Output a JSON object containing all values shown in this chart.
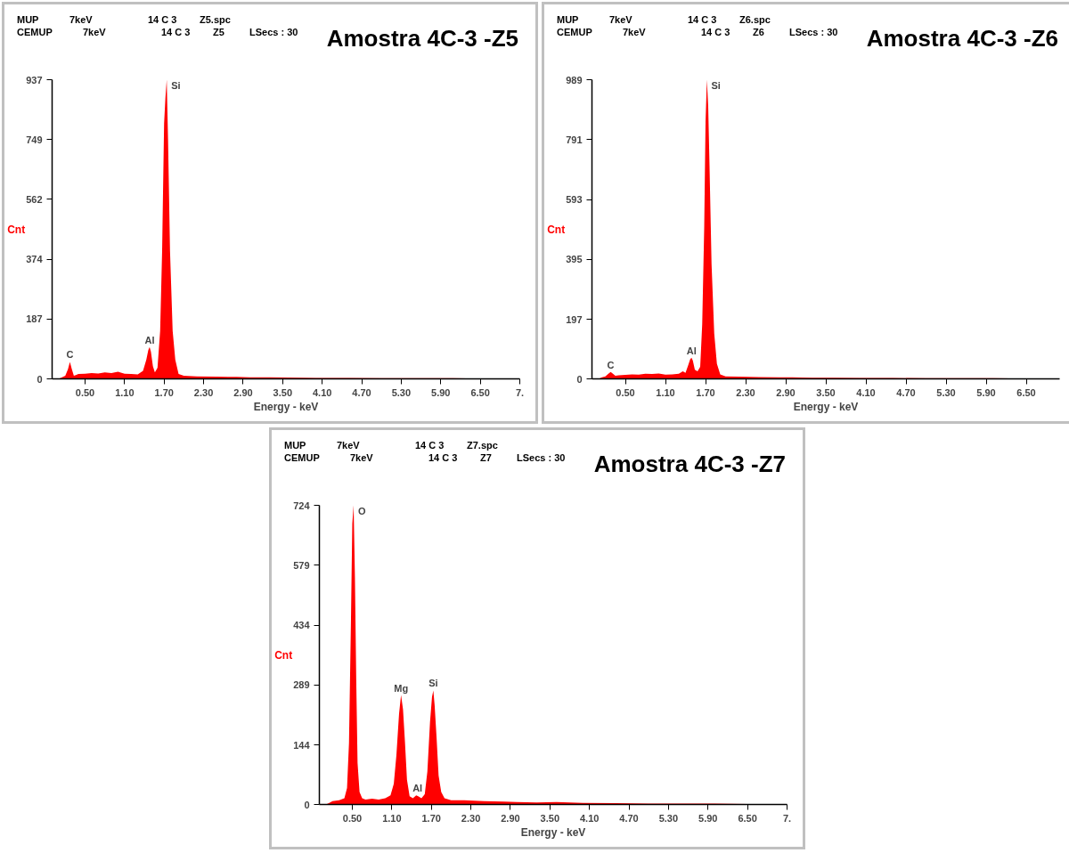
{
  "chart_data": [
    {
      "type": "area",
      "title": "Amostra 4C-3 -Z5",
      "xlabel": "Energy - keV",
      "ylabel": "Cnt",
      "color": "#ff0000",
      "annotations": [
        "MUP",
        "7keV",
        "14 C 3",
        "Z5.spc",
        "CEMUP",
        "7keV",
        "14 C 3",
        "Z5",
        "LSecs : 30",
        {
          "text": "C",
          "x": 0.27,
          "y": 53
        },
        {
          "text": "Al",
          "x": 1.48,
          "y": 100
        },
        {
          "text": "Si",
          "x": 1.74,
          "y": 937
        }
      ],
      "x": [
        0.1,
        0.15,
        0.2,
        0.24,
        0.27,
        0.3,
        0.33,
        0.36,
        0.4,
        0.5,
        0.6,
        0.7,
        0.8,
        0.9,
        1.0,
        1.1,
        1.2,
        1.3,
        1.38,
        1.43,
        1.46,
        1.48,
        1.5,
        1.53,
        1.56,
        1.6,
        1.64,
        1.67,
        1.7,
        1.72,
        1.74,
        1.76,
        1.79,
        1.83,
        1.87,
        1.92,
        2.0,
        2.2,
        2.5,
        2.8,
        3.0,
        3.3,
        3.6,
        4.0,
        4.5,
        5.0,
        5.5,
        6.0,
        6.5,
        7.0
      ],
      "values": [
        0,
        5,
        10,
        30,
        53,
        30,
        10,
        12,
        15,
        16,
        18,
        17,
        20,
        18,
        22,
        16,
        15,
        14,
        25,
        60,
        90,
        100,
        85,
        40,
        20,
        35,
        150,
        400,
        800,
        880,
        937,
        750,
        400,
        150,
        60,
        15,
        10,
        8,
        7,
        6,
        5,
        5,
        4,
        3,
        3,
        2,
        2,
        2,
        1,
        1
      ],
      "xlim": [
        0,
        7.1
      ],
      "ylim": [
        0,
        937
      ],
      "xticks": [
        {
          "value": 0.5,
          "label": "0.50"
        },
        {
          "value": 1.1,
          "label": "1.10"
        },
        {
          "value": 1.7,
          "label": "1.70"
        },
        {
          "value": 2.3,
          "label": "2.30"
        },
        {
          "value": 2.9,
          "label": "2.90"
        },
        {
          "value": 3.5,
          "label": "3.50"
        },
        {
          "value": 4.1,
          "label": "4.10"
        },
        {
          "value": 4.7,
          "label": "4.70"
        },
        {
          "value": 5.3,
          "label": "5.30"
        },
        {
          "value": 5.9,
          "label": "5.90"
        },
        {
          "value": 6.5,
          "label": "6.50"
        },
        {
          "value": 7.1,
          "label": "7."
        }
      ],
      "yticks": [
        0,
        187,
        374,
        562,
        749,
        937
      ],
      "grid": false
    },
    {
      "type": "area",
      "title": "Amostra 4C-3 -Z6",
      "xlabel": "Energy - keV",
      "ylabel": "Cnt",
      "color": "#ff0000",
      "annotations": [
        "MUP",
        "7keV",
        "14 C 3",
        "Z6.spc",
        "CEMUP",
        "7keV",
        "14 C 3",
        "Z6",
        "LSecs : 30",
        {
          "text": "C",
          "x": 0.28,
          "y": 23
        },
        {
          "text": "Al",
          "x": 1.49,
          "y": 70
        },
        {
          "text": "Si",
          "x": 1.72,
          "y": 989
        }
      ],
      "x": [
        0.1,
        0.15,
        0.2,
        0.25,
        0.28,
        0.31,
        0.35,
        0.4,
        0.5,
        0.6,
        0.7,
        0.8,
        0.9,
        1.0,
        1.1,
        1.2,
        1.3,
        1.36,
        1.4,
        1.44,
        1.47,
        1.49,
        1.51,
        1.54,
        1.58,
        1.62,
        1.65,
        1.68,
        1.7,
        1.72,
        1.74,
        1.76,
        1.79,
        1.83,
        1.87,
        1.92,
        2.0,
        2.2,
        2.5,
        2.8,
        3.0,
        3.3,
        3.6,
        4.0,
        4.5,
        5.0,
        5.5,
        6.0,
        6.5,
        7.0
      ],
      "values": [
        0,
        5,
        8,
        18,
        23,
        18,
        10,
        12,
        13,
        15,
        14,
        17,
        16,
        18,
        14,
        15,
        17,
        25,
        20,
        45,
        65,
        70,
        60,
        30,
        25,
        40,
        180,
        500,
        850,
        989,
        900,
        700,
        380,
        150,
        50,
        15,
        8,
        7,
        6,
        5,
        5,
        4,
        4,
        3,
        3,
        2,
        2,
        2,
        1,
        1
      ],
      "xlim": [
        0,
        7.0
      ],
      "ylim": [
        0,
        989
      ],
      "xticks": [
        {
          "value": 0.5,
          "label": "0.50"
        },
        {
          "value": 1.1,
          "label": "1.10"
        },
        {
          "value": 1.7,
          "label": "1.70"
        },
        {
          "value": 2.3,
          "label": "2.30"
        },
        {
          "value": 2.9,
          "label": "2.90"
        },
        {
          "value": 3.5,
          "label": "3.50"
        },
        {
          "value": 4.1,
          "label": "4.10"
        },
        {
          "value": 4.7,
          "label": "4.70"
        },
        {
          "value": 5.3,
          "label": "5.30"
        },
        {
          "value": 5.9,
          "label": "5.90"
        },
        {
          "value": 6.5,
          "label": "6.50"
        }
      ],
      "yticks": [
        0,
        197,
        395,
        593,
        791,
        989
      ],
      "grid": false
    },
    {
      "type": "area",
      "title": "Amostra 4C-3 -Z7",
      "xlabel": "Energy - keV",
      "ylabel": "Cnt",
      "color": "#ff0000",
      "annotations": [
        "MUP",
        "7keV",
        "14 C 3",
        "Z7.spc",
        "CEMUP",
        "7keV",
        "14 C 3",
        "Z7",
        "LSecs : 30",
        {
          "text": "O",
          "x": 0.52,
          "y": 724
        },
        {
          "text": "Mg",
          "x": 1.24,
          "y": 265
        },
        {
          "text": "Al",
          "x": 1.49,
          "y": 22
        },
        {
          "text": "Si",
          "x": 1.73,
          "y": 276
        }
      ],
      "x": [
        0.1,
        0.15,
        0.2,
        0.3,
        0.38,
        0.42,
        0.45,
        0.48,
        0.5,
        0.52,
        0.54,
        0.56,
        0.58,
        0.61,
        0.65,
        0.7,
        0.8,
        0.9,
        1.0,
        1.08,
        1.13,
        1.17,
        1.21,
        1.24,
        1.27,
        1.3,
        1.33,
        1.37,
        1.42,
        1.47,
        1.5,
        1.55,
        1.6,
        1.64,
        1.68,
        1.71,
        1.73,
        1.75,
        1.78,
        1.81,
        1.85,
        1.9,
        2.0,
        2.2,
        2.5,
        2.8,
        3.0,
        3.3,
        3.6,
        4.0,
        4.5,
        5.0,
        5.5,
        6.0,
        6.5,
        7.0
      ],
      "values": [
        0,
        4,
        8,
        10,
        15,
        40,
        150,
        450,
        680,
        724,
        550,
        300,
        100,
        30,
        15,
        12,
        14,
        12,
        15,
        22,
        50,
        120,
        220,
        265,
        230,
        150,
        60,
        20,
        15,
        22,
        20,
        15,
        25,
        80,
        200,
        260,
        276,
        240,
        160,
        70,
        30,
        15,
        10,
        10,
        8,
        7,
        6,
        5,
        6,
        4,
        3,
        2,
        2,
        2,
        1,
        1
      ],
      "xlim": [
        0,
        7.1
      ],
      "ylim": [
        0,
        724
      ],
      "xticks": [
        {
          "value": 0.5,
          "label": "0.50"
        },
        {
          "value": 1.1,
          "label": "1.10"
        },
        {
          "value": 1.7,
          "label": "1.70"
        },
        {
          "value": 2.3,
          "label": "2.30"
        },
        {
          "value": 2.9,
          "label": "2.90"
        },
        {
          "value": 3.5,
          "label": "3.50"
        },
        {
          "value": 4.1,
          "label": "4.10"
        },
        {
          "value": 4.7,
          "label": "4.70"
        },
        {
          "value": 5.3,
          "label": "5.30"
        },
        {
          "value": 5.9,
          "label": "5.90"
        },
        {
          "value": 6.5,
          "label": "6.50"
        },
        {
          "value": 7.1,
          "label": "7."
        }
      ],
      "yticks": [
        0,
        144,
        289,
        434,
        579,
        724
      ],
      "grid": false
    }
  ]
}
